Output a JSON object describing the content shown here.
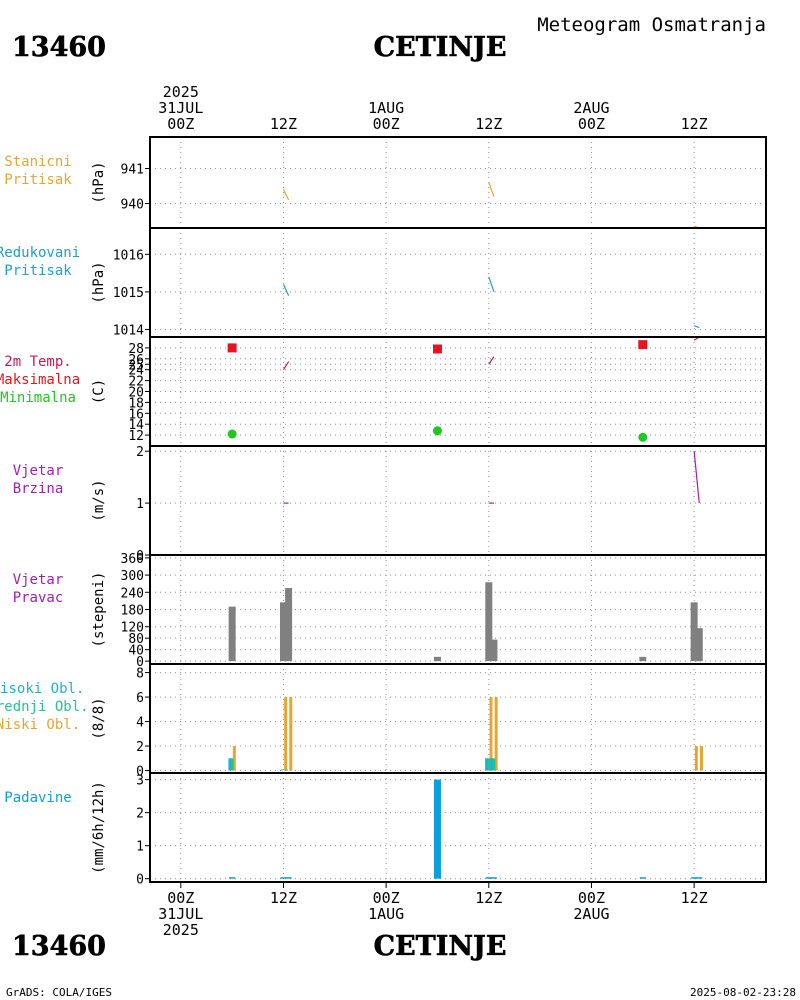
{
  "header": {
    "station_id": "13460",
    "station_name": "CETINJE",
    "meteogram_title": "Meteogram Osmatranja"
  },
  "footer": {
    "station_id": "13460",
    "station_name": "CETINJE",
    "credit": "GrADS: COLA/IGES",
    "timestamp": "2025-08-02-23:28"
  },
  "time_axis": {
    "range_hours": [
      -6,
      114
    ],
    "top_ticks": [
      {
        "hour": 0,
        "lines": [
          "2025",
          "31JUL",
          "00Z"
        ]
      },
      {
        "hour": 20,
        "lines": [
          "12Z"
        ]
      },
      {
        "hour": 40,
        "lines": [
          "1AUG",
          "00Z"
        ]
      },
      {
        "hour": 60,
        "lines": [
          "12Z"
        ]
      },
      {
        "hour": 80,
        "lines": [
          "2AUG",
          "00Z"
        ]
      },
      {
        "hour": 100,
        "lines": [
          "12Z"
        ]
      }
    ],
    "bottom_ticks": [
      {
        "hour": 0,
        "lines": [
          "00Z",
          "31JUL",
          "2025"
        ]
      },
      {
        "hour": 20,
        "lines": [
          "12Z"
        ]
      },
      {
        "hour": 40,
        "lines": [
          "00Z",
          "1AUG"
        ]
      },
      {
        "hour": 60,
        "lines": [
          "12Z"
        ]
      },
      {
        "hour": 80,
        "lines": [
          "00Z",
          "2AUG"
        ]
      },
      {
        "hour": 100,
        "lines": [
          "12Z"
        ]
      }
    ]
  },
  "colors": {
    "station_pressure": "#e6a532",
    "reduced_pressure": "#1ea0c8",
    "temp_label": "#d2145a",
    "tmax": "#e6141e",
    "tmin": "#1ec81e",
    "wind": "#a01eb4",
    "wind_dir_bar": "#808080",
    "high_cloud": "#1eb4c8",
    "mid_cloud": "#1ec88c",
    "low_cloud": "#e6a532",
    "precip": "#0aa0dc"
  },
  "chart_data": [
    {
      "id": "station_pressure",
      "type": "line",
      "label_lines": [
        "Stanicni",
        "Pritisak"
      ],
      "ylabel": "(hPa)",
      "ylim": [
        939.3,
        941.9
      ],
      "yticks": [
        940,
        941
      ],
      "segments": [
        {
          "x": [
            20,
            21
          ],
          "y": [
            940.4,
            940.1
          ]
        },
        {
          "x": [
            60,
            61
          ],
          "y": [
            940.6,
            940.2
          ]
        },
        {
          "x": [
            100,
            101
          ],
          "y": [
            939.35,
            939.3
          ]
        }
      ]
    },
    {
      "id": "reduced_pressure",
      "type": "line",
      "label_lines": [
        "Redukovani",
        "Pritisak"
      ],
      "ylabel": "(hPa)",
      "ylim": [
        1013.8,
        1016.7
      ],
      "yticks": [
        1014,
        1015,
        1016
      ],
      "segments": [
        {
          "x": [
            20,
            21
          ],
          "y": [
            1015.2,
            1014.9
          ]
        },
        {
          "x": [
            60,
            61
          ],
          "y": [
            1015.4,
            1015.0
          ]
        },
        {
          "x": [
            100,
            101
          ],
          "y": [
            1014.1,
            1014.05
          ]
        }
      ]
    },
    {
      "id": "temperature",
      "type": "scatter",
      "label_lines": [
        "2m Temp.",
        "Maksimalna",
        "Minimalna"
      ],
      "ylabel": "(C)",
      "ylim": [
        10,
        30
      ],
      "yticks": [
        12,
        14,
        16,
        18,
        20,
        22,
        24,
        25,
        26,
        28
      ],
      "tmax": [
        {
          "x": 10,
          "y": 28.0
        },
        {
          "x": 50,
          "y": 27.8
        },
        {
          "x": 90,
          "y": 28.6
        }
      ],
      "tmin": [
        {
          "x": 10,
          "y": 12.2
        },
        {
          "x": 50,
          "y": 12.8
        },
        {
          "x": 90,
          "y": 11.6
        }
      ],
      "segments": [
        {
          "x": [
            20,
            21
          ],
          "y": [
            24.0,
            25.5
          ]
        },
        {
          "x": [
            60,
            61
          ],
          "y": [
            25.0,
            26.4
          ]
        },
        {
          "x": [
            100,
            101
          ],
          "y": [
            29.4,
            30.0
          ]
        }
      ]
    },
    {
      "id": "wind_speed",
      "type": "line",
      "label_lines": [
        "Vjetar",
        "Brzina"
      ],
      "ylabel": "(m/s)",
      "ylim": [
        0,
        2.1
      ],
      "yticks": [
        0,
        1,
        2
      ],
      "segments": [
        {
          "x": [
            20,
            21
          ],
          "y": [
            1.0,
            1.0
          ]
        },
        {
          "x": [
            60,
            61
          ],
          "y": [
            1.0,
            1.0
          ]
        },
        {
          "x": [
            100,
            101
          ],
          "y": [
            2.0,
            1.0
          ]
        }
      ]
    },
    {
      "id": "wind_direction",
      "type": "bar",
      "label_lines": [
        "Vjetar",
        "Pravac"
      ],
      "ylabel": "(stepeni)",
      "ylim": [
        -10,
        370
      ],
      "yticks": [
        0,
        40,
        80,
        120,
        180,
        240,
        300,
        360
      ],
      "bars": [
        {
          "x": 10,
          "value": 190
        },
        {
          "x": 20,
          "value": 205
        },
        {
          "x": 21,
          "value": 255
        },
        {
          "x": 50,
          "value": 15
        },
        {
          "x": 60,
          "value": 275
        },
        {
          "x": 61,
          "value": 75
        },
        {
          "x": 90,
          "value": 15
        },
        {
          "x": 100,
          "value": 205
        },
        {
          "x": 101,
          "value": 115
        }
      ]
    },
    {
      "id": "clouds",
      "type": "bar",
      "label_lines": [
        "Visoki Obl.",
        "Srednji Obl.",
        "Niski Obl."
      ],
      "ylabel": "(8/8)",
      "ylim": [
        -0.2,
        8.7
      ],
      "yticks": [
        0,
        2,
        4,
        6,
        8
      ],
      "series": [
        {
          "name": "Visoki Obl.",
          "points": [
            {
              "x": 10,
              "value": 1
            },
            {
              "x": 20,
              "value": 0
            },
            {
              "x": 21,
              "value": 0
            },
            {
              "x": 60,
              "value": 1
            },
            {
              "x": 61,
              "value": 1
            }
          ]
        },
        {
          "name": "Srednji Obl.",
          "points": [
            {
              "x": 10,
              "value": 1
            },
            {
              "x": 60,
              "value": 1
            },
            {
              "x": 61,
              "value": 1
            }
          ]
        },
        {
          "name": "Niski Obl.",
          "points": [
            {
              "x": 10,
              "value": 2
            },
            {
              "x": 20,
              "value": 6
            },
            {
              "x": 21,
              "value": 6
            },
            {
              "x": 60,
              "value": 6
            },
            {
              "x": 61,
              "value": 6
            },
            {
              "x": 100,
              "value": 2
            },
            {
              "x": 101,
              "value": 2
            }
          ]
        }
      ]
    },
    {
      "id": "precipitation",
      "type": "bar",
      "label_lines": [
        "Padavine"
      ],
      "ylabel": "(mm/6h/12h)",
      "ylim": [
        -0.1,
        3.2
      ],
      "yticks": [
        0,
        1,
        2,
        3
      ],
      "bars": [
        {
          "x": 10,
          "value": 0
        },
        {
          "x": 20,
          "value": 0
        },
        {
          "x": 21,
          "value": 0
        },
        {
          "x": 50,
          "value": 3.0
        },
        {
          "x": 60,
          "value": 0
        },
        {
          "x": 61,
          "value": 0
        },
        {
          "x": 90,
          "value": 0
        },
        {
          "x": 100,
          "value": 0
        },
        {
          "x": 101,
          "value": 0
        }
      ]
    }
  ]
}
